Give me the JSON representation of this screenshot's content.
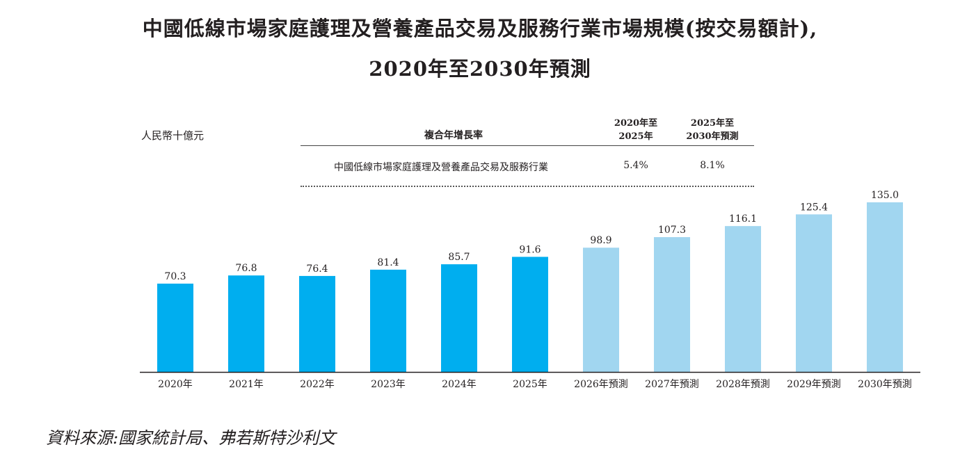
{
  "title_line1": "中國低線市場家庭護理及營養產品交易及服務行業市場規模(按交易額計),",
  "title_line2": "2020年至2030年預測",
  "unit_label": "人民幣十億元",
  "cagr_table": {
    "header": "複合年增長率",
    "col1": [
      "2020年至",
      "2025年"
    ],
    "col2": [
      "2025年至",
      "2030年預測"
    ],
    "row_label": "中國低線市場家庭護理及營養產品交易及服務行業",
    "val1": "5.4%",
    "val2": "8.1%"
  },
  "source": "資料來源:國家統計局、弗若斯特沙利文",
  "colors": {
    "actual": "#00aeef",
    "forecast": "#a1d6f0",
    "axis": "#231f20"
  },
  "chart_data": {
    "type": "bar",
    "categories": [
      "2020年",
      "2021年",
      "2022年",
      "2023年",
      "2024年",
      "2025年",
      "2026年預測",
      "2027年預測",
      "2028年預測",
      "2029年預測",
      "2030年預測"
    ],
    "values": [
      70.3,
      76.8,
      76.4,
      81.4,
      85.7,
      91.6,
      98.9,
      107.3,
      116.1,
      125.4,
      135.0
    ],
    "value_labels": [
      "70.3",
      "76.8",
      "76.4",
      "81.4",
      "85.7",
      "91.6",
      "98.9",
      "107.3",
      "116.1",
      "125.4",
      "135.0"
    ],
    "forecast": [
      false,
      false,
      false,
      false,
      false,
      false,
      true,
      true,
      true,
      true,
      true
    ],
    "ylim": [
      0,
      135
    ],
    "grid": false,
    "title": "",
    "ylabel": "人民幣十億元"
  }
}
